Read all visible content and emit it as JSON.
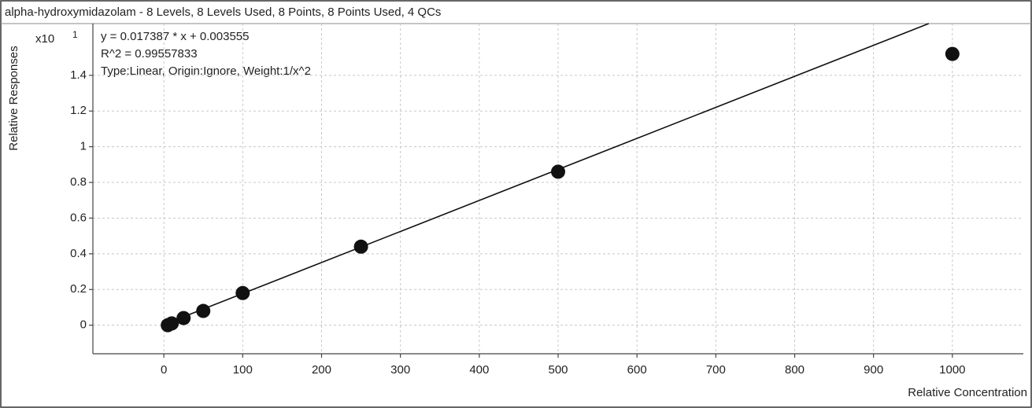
{
  "chart_data": {
    "type": "scatter",
    "title": "alpha-hydroxymidazolam - 8 Levels, 8 Levels Used, 8 Points, 8 Points Used, 4 QCs",
    "x_label": "Relative Concentration",
    "y_label": "Relative Responses",
    "y_multiplier": "x10",
    "y_exponent": "1",
    "annotations": [
      "y = 0.017387 * x  + 0.003555",
      "R^2 = 0.99557833",
      "Type:Linear, Origin:Ignore, Weight:1/x^2"
    ],
    "x": [
      5,
      10,
      25,
      50,
      100,
      250,
      500,
      1000
    ],
    "values": [
      0.0,
      0.01,
      0.04,
      0.08,
      0.18,
      0.44,
      0.86,
      1.52
    ],
    "color": "#111111",
    "fit_line": {
      "x": [
        0,
        970
      ],
      "values": [
        0.0036,
        1.69
      ],
      "color": "#111111"
    },
    "xlim": [
      -90,
      1090
    ],
    "ylim": [
      -0.16,
      1.69
    ],
    "xticks": [
      0,
      100,
      200,
      300,
      400,
      500,
      600,
      700,
      800,
      900,
      1000
    ],
    "yticks": [
      0,
      0.2,
      0.4,
      0.6,
      0.8,
      1,
      1.2,
      1.4
    ],
    "grid": true
  }
}
